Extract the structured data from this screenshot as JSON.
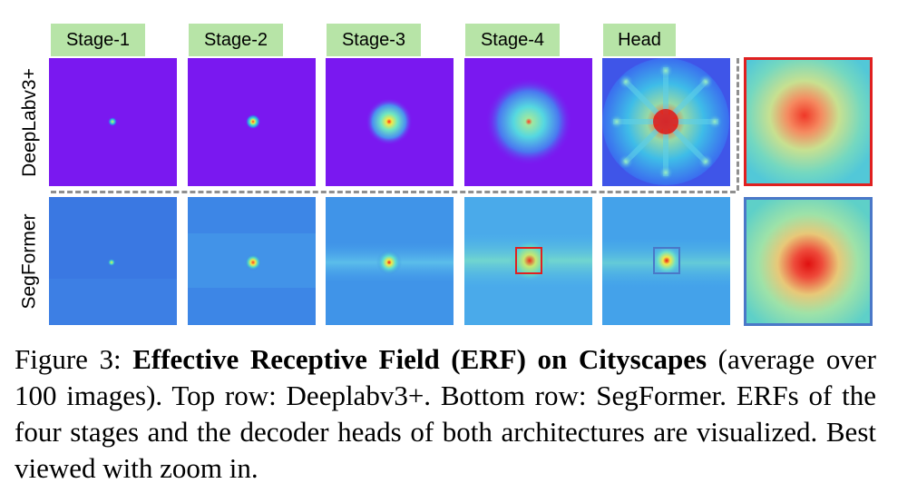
{
  "columns": [
    "Stage-1",
    "Stage-2",
    "Stage-3",
    "Stage-4",
    "Head"
  ],
  "rows": [
    "DeepLabv3+",
    "SegFormer"
  ],
  "colors": {
    "label_bg": "#b7e4a7",
    "deeplab_bg": "#7a18f0",
    "segformer_bg": "#3a7ce0",
    "zoom_red": "#e02020",
    "zoom_blue": "#4a78c8",
    "dash": "#8f8f8f"
  },
  "caption": {
    "prefix": "Figure 3: ",
    "bold": "Effective Receptive Field (ERF) on Cityscapes",
    "rest": " (average over 100 images). Top row: Deeplabv3+. Bottom row: SegFormer. ERFs of the four stages and the decoder heads of both architectures are visualized. Best viewed with zoom in."
  }
}
